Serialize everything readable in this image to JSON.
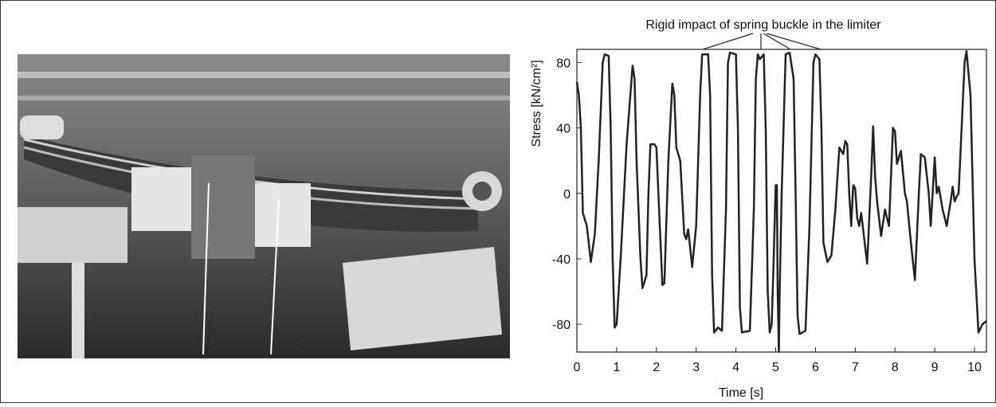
{
  "chart_data": {
    "type": "line",
    "title": "Rigid impact of spring buckle in the limiter",
    "x_label": "Time [s]",
    "y_label": "Stress [kN/cm²]",
    "xlim": [
      0,
      10.3
    ],
    "ylim": [
      -97,
      88
    ],
    "xticks": [
      0,
      1,
      2,
      3,
      4,
      5,
      6,
      7,
      8,
      9,
      10
    ],
    "yticks": [
      -80,
      -40,
      0,
      40,
      80
    ],
    "x": [
      0,
      0.05,
      0.1,
      0.15,
      0.25,
      0.35,
      0.45,
      0.55,
      0.65,
      0.7,
      0.8,
      0.85,
      0.9,
      0.95,
      1.0,
      1.1,
      1.25,
      1.4,
      1.45,
      1.5,
      1.6,
      1.65,
      1.75,
      1.8,
      1.85,
      1.95,
      2.0,
      2.05,
      2.15,
      2.2,
      2.3,
      2.4,
      2.45,
      2.5,
      2.6,
      2.7,
      2.75,
      2.8,
      2.9,
      3.0,
      3.1,
      3.15,
      3.3,
      3.35,
      3.4,
      3.45,
      3.55,
      3.65,
      3.75,
      3.8,
      3.85,
      4.0,
      4.05,
      4.1,
      4.15,
      4.35,
      4.45,
      4.5,
      4.55,
      4.6,
      4.7,
      4.75,
      4.8,
      4.85,
      4.9,
      4.95,
      5.0,
      5.03,
      5.05,
      5.08,
      5.1,
      5.15,
      5.25,
      5.35,
      5.45,
      5.5,
      5.55,
      5.6,
      5.75,
      5.85,
      5.95,
      6.0,
      6.1,
      6.15,
      6.2,
      6.3,
      6.4,
      6.5,
      6.6,
      6.7,
      6.75,
      6.8,
      6.85,
      6.9,
      6.95,
      7.0,
      7.05,
      7.1,
      7.15,
      7.3,
      7.4,
      7.45,
      7.5,
      7.55,
      7.65,
      7.75,
      7.85,
      7.95,
      8.0,
      8.05,
      8.15,
      8.25,
      8.3,
      8.4,
      8.5,
      8.6,
      8.65,
      8.75,
      8.85,
      8.9,
      9.0,
      9.05,
      9.1,
      9.2,
      9.3,
      9.4,
      9.45,
      9.5,
      9.55,
      9.6,
      9.75,
      9.8,
      9.9,
      10.0,
      10.1,
      10.2,
      10.3
    ],
    "series": [
      {
        "color": "#222222",
        "values": [
          68,
          60,
          40,
          -12,
          -20,
          -42,
          -25,
          20,
          80,
          85,
          84,
          40,
          -40,
          -82,
          -80,
          -40,
          30,
          78,
          70,
          20,
          -40,
          -58,
          -50,
          0,
          30,
          30,
          28,
          0,
          -56,
          -55,
          20,
          67,
          60,
          28,
          20,
          -25,
          -28,
          -22,
          -45,
          -20,
          60,
          85,
          85,
          60,
          -50,
          -85,
          -82,
          -84,
          -10,
          80,
          86,
          85,
          40,
          -70,
          -85,
          -84,
          -10,
          70,
          85,
          82,
          85,
          40,
          -60,
          -85,
          -80,
          -40,
          5,
          5,
          -60,
          -97,
          -60,
          0,
          85,
          86,
          70,
          0,
          -75,
          -86,
          -84,
          -20,
          80,
          85,
          82,
          40,
          -30,
          -42,
          -38,
          -10,
          28,
          24,
          32,
          30,
          0,
          -20,
          5,
          3,
          -15,
          -20,
          -12,
          -43,
          10,
          41,
          10,
          -5,
          -26,
          -10,
          -20,
          40,
          38,
          18,
          26,
          0,
          -5,
          -30,
          -53,
          0,
          24,
          22,
          0,
          -20,
          22,
          0,
          4,
          -10,
          -20,
          -5,
          4,
          -5,
          -2,
          0,
          80,
          87,
          60,
          -40,
          -85,
          -80,
          -78
        ]
      }
    ]
  }
}
